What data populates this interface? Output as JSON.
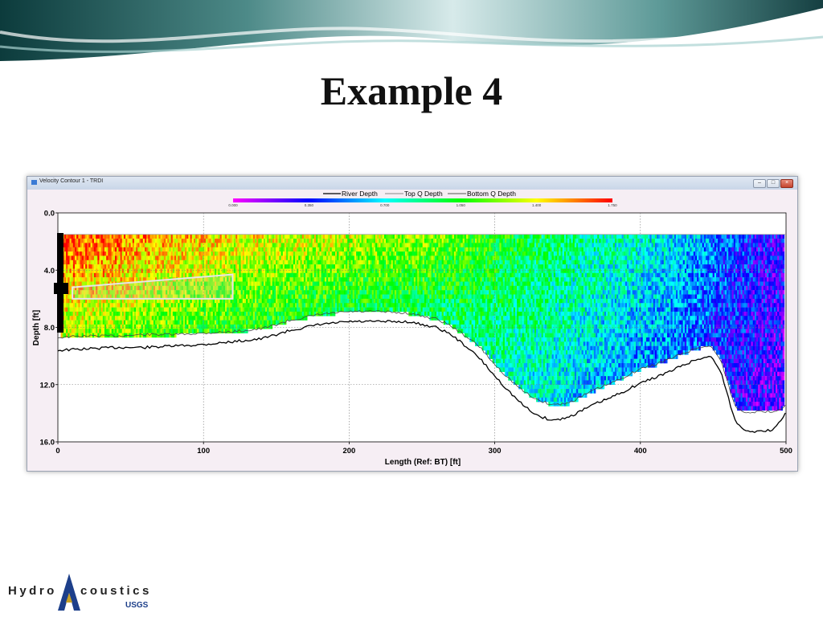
{
  "slide": {
    "title": "Example 4",
    "logo_text_left": "Hydro",
    "logo_text_right": "coustics",
    "logo_sub": "USGS"
  },
  "window": {
    "title": "Velocity Contour 1 - TRDI",
    "buttons": {
      "minimize": "–",
      "maximize": "□",
      "close": "×"
    }
  },
  "chart_data": {
    "type": "heatmap",
    "title": "",
    "xlabel": "Length (Ref: BT) [ft]",
    "ylabel": "Depth [ft]",
    "xlim": [
      0,
      500
    ],
    "ylim": [
      16,
      0
    ],
    "x_ticks": [
      0,
      100,
      200,
      300,
      400,
      500
    ],
    "y_ticks": [
      "0.0",
      "4.0",
      "8.0",
      "12.0",
      "16.0"
    ],
    "grid": true,
    "colorbar": {
      "ticks": [
        "0.000",
        "0.350",
        "0.700",
        "1.050",
        "1.400",
        "1.750"
      ],
      "stops": [
        "#ff00ff",
        "#0000ff",
        "#00ffff",
        "#00ff00",
        "#ffff00",
        "#ff0000"
      ]
    },
    "legend": {
      "placement": "top-center",
      "items": [
        "River Depth",
        "Top Q Depth",
        "Bottom Q Depth"
      ]
    },
    "top_measured_depth_ft": 1.5,
    "velocity_profile": {
      "x": [
        0,
        20,
        40,
        60,
        80,
        100,
        120,
        160,
        200,
        240,
        280,
        300,
        330,
        360,
        400,
        420,
        440,
        460,
        480,
        500
      ],
      "velocity": [
        1.7,
        1.65,
        1.6,
        1.55,
        1.5,
        1.45,
        1.4,
        1.35,
        1.3,
        1.25,
        1.15,
        1.05,
        0.95,
        0.85,
        0.75,
        0.7,
        0.6,
        0.45,
        0.35,
        0.3
      ]
    },
    "series": [
      {
        "name": "River Depth",
        "x": [
          0,
          20,
          40,
          60,
          80,
          100,
          120,
          140,
          160,
          180,
          200,
          220,
          240,
          260,
          270,
          280,
          290,
          300,
          310,
          320,
          330,
          340,
          350,
          360,
          370,
          380,
          390,
          400,
          410,
          420,
          430,
          440,
          448,
          455,
          460,
          465,
          470,
          480,
          490,
          500
        ],
        "y": [
          9.6,
          9.5,
          9.4,
          9.4,
          9.3,
          9.2,
          9.0,
          8.8,
          8.2,
          7.8,
          7.6,
          7.6,
          7.6,
          8.0,
          8.5,
          9.3,
          10.2,
          11.4,
          12.5,
          13.5,
          14.2,
          14.5,
          14.3,
          13.8,
          13.3,
          12.9,
          12.4,
          11.9,
          11.5,
          11.1,
          10.6,
          10.2,
          10.0,
          11.0,
          12.8,
          14.5,
          15.1,
          15.3,
          15.2,
          14.0
        ]
      },
      {
        "name": "Top Q Depth",
        "x": [
          0,
          500
        ],
        "y": [
          1.5,
          1.5
        ]
      },
      {
        "name": "Bottom Q Depth",
        "x": [
          0,
          20,
          40,
          60,
          80,
          100,
          120,
          140,
          160,
          180,
          200,
          220,
          240,
          260,
          270,
          280,
          290,
          300,
          310,
          320,
          330,
          340,
          350,
          360,
          370,
          380,
          390,
          400,
          410,
          420,
          430,
          440,
          448,
          455,
          460,
          465,
          470,
          480,
          490,
          500
        ],
        "y": [
          8.7,
          8.6,
          8.6,
          8.5,
          8.5,
          8.4,
          8.3,
          8.1,
          7.5,
          7.1,
          6.9,
          6.9,
          7.0,
          7.4,
          7.9,
          8.6,
          9.4,
          10.6,
          11.6,
          12.5,
          13.1,
          13.4,
          13.3,
          12.8,
          12.3,
          11.9,
          11.4,
          10.9,
          10.6,
          10.2,
          9.8,
          9.4,
          9.3,
          10.2,
          11.9,
          13.5,
          13.9,
          13.9,
          13.9,
          13.5
        ]
      }
    ],
    "selection_box": {
      "x": [
        10,
        120
      ],
      "y_top_left": 5.2,
      "y_top_right": 4.3,
      "y_bottom": 6.0
    }
  }
}
